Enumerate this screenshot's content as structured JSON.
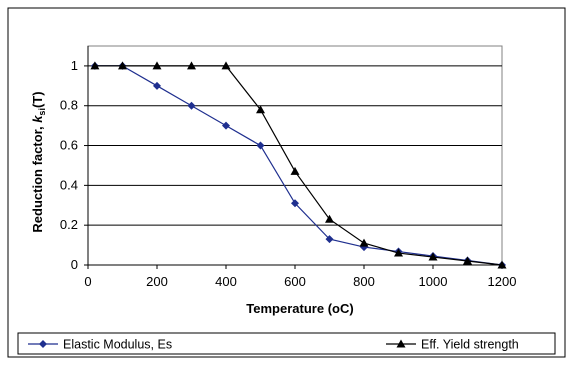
{
  "chart_data": {
    "type": "line",
    "xlabel": "Temperature (oC)",
    "ylabel": "Reduction factor, k_si(T)",
    "ylabel_parts": {
      "before": "Reduction factor, ",
      "k": "k",
      "sub": "s",
      "i": "i",
      "after": "(T)"
    },
    "xlim": [
      0,
      1200
    ],
    "ylim": [
      0,
      1.1
    ],
    "xticks": [
      "0",
      "200",
      "400",
      "600",
      "800",
      "1000",
      "1200"
    ],
    "yticks": [
      "0",
      "0.2",
      "0.4",
      "0.6",
      "0.8",
      "1"
    ],
    "grid": "horizontal",
    "legend_position": "bottom",
    "series": [
      {
        "name": "Elastic Modulus, Es",
        "color": "#1f2f8f",
        "marker": "diamond",
        "x": [
          20,
          100,
          200,
          300,
          400,
          500,
          600,
          700,
          800,
          900,
          1000,
          1100,
          1200
        ],
        "y": [
          1.0,
          1.0,
          0.9,
          0.8,
          0.7,
          0.6,
          0.31,
          0.13,
          0.09,
          0.0675,
          0.045,
          0.0225,
          0.0
        ]
      },
      {
        "name": "Eff. Yield strength",
        "color": "#000000",
        "marker": "triangle",
        "x": [
          20,
          100,
          200,
          300,
          400,
          500,
          600,
          700,
          800,
          900,
          1000,
          1100,
          1200
        ],
        "y": [
          1.0,
          1.0,
          1.0,
          1.0,
          1.0,
          0.78,
          0.47,
          0.23,
          0.11,
          0.06,
          0.04,
          0.02,
          0.0
        ]
      }
    ]
  }
}
